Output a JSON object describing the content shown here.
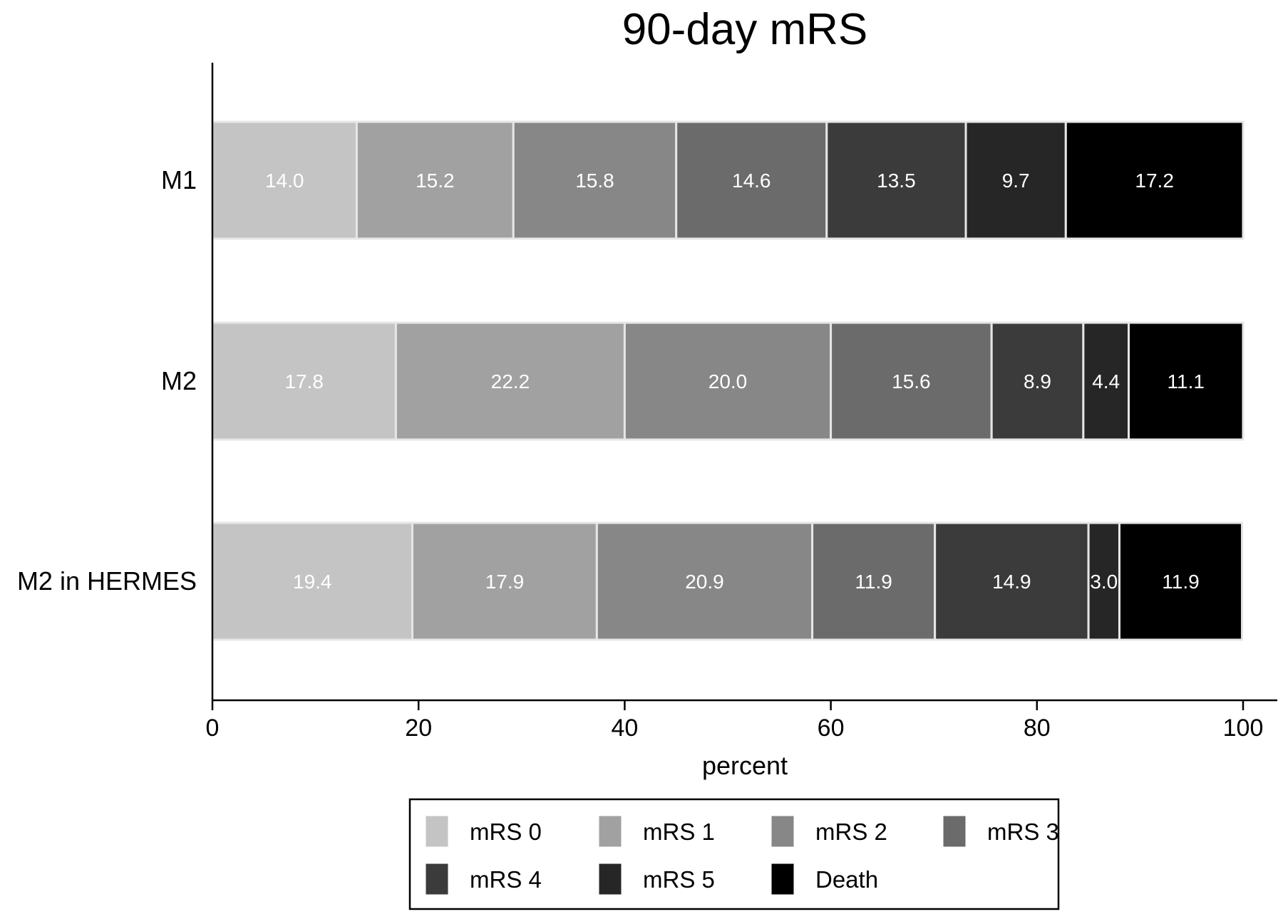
{
  "chart_data": {
    "type": "bar",
    "orientation": "horizontal",
    "stacked": true,
    "title": "90-day mRS",
    "xlabel": "percent",
    "ylabel": "",
    "xlim": [
      0,
      100
    ],
    "xticks": [
      0,
      20,
      40,
      60,
      80,
      100
    ],
    "categories": [
      "M1",
      "M2",
      "M2 in HERMES"
    ],
    "series": [
      {
        "name": "mRS 0",
        "color": "#c4c4c4",
        "values": [
          14.0,
          17.8,
          19.4
        ]
      },
      {
        "name": "mRS 1",
        "color": "#a1a1a1",
        "values": [
          15.2,
          22.2,
          17.9
        ]
      },
      {
        "name": "mRS 2",
        "color": "#878787",
        "values": [
          15.8,
          20.0,
          20.9
        ]
      },
      {
        "name": "mRS 3",
        "color": "#6b6b6b",
        "values": [
          14.6,
          15.6,
          11.9
        ]
      },
      {
        "name": "mRS 4",
        "color": "#3b3b3b",
        "values": [
          13.5,
          8.9,
          14.9
        ]
      },
      {
        "name": "mRS 5",
        "color": "#262626",
        "values": [
          9.7,
          4.4,
          3.0
        ]
      },
      {
        "name": "Death",
        "color": "#000000",
        "values": [
          17.2,
          11.1,
          11.9
        ]
      }
    ],
    "data_labels": [
      [
        "14.0",
        "15.2",
        "15.8",
        "14.6",
        "13.5",
        "9.7",
        "17.2"
      ],
      [
        "17.8",
        "22.2",
        "20.0",
        "15.6",
        "8.9",
        "4.4",
        "11.1"
      ],
      [
        "19.4",
        "17.9",
        "20.9",
        "11.9",
        "14.9",
        "3.0",
        "11.9"
      ]
    ],
    "grid": false,
    "legend_position": "bottom"
  }
}
